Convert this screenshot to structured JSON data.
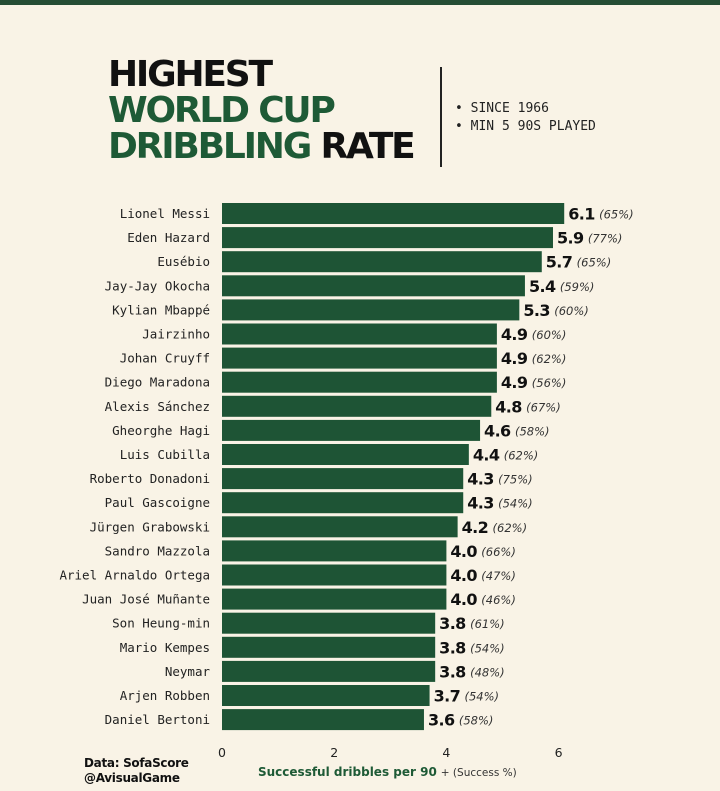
{
  "title": {
    "line1": "HIGHEST",
    "line2": "WORLD CUP",
    "line3_green": "DRIBBLING",
    "line3_dark": "RATE"
  },
  "notes": [
    "• SINCE 1966",
    "• MIN 5 90S PLAYED"
  ],
  "source": {
    "line1": "Data: SofaScore",
    "line2": "@AvisualGame"
  },
  "colors": {
    "bar": "#1e5435",
    "accent": "#1e5a36",
    "background": "#f9f3e6"
  },
  "chart_data": {
    "type": "bar",
    "orientation": "horizontal",
    "xlabel": "Successful dribbles per 90",
    "xlabel_note": "+ (Success %)",
    "xlim": [
      0,
      6.2
    ],
    "xticks": [
      0,
      2,
      4,
      6
    ],
    "grid": false,
    "categories": [
      "Lionel Messi",
      "Eden Hazard",
      "Eusébio",
      "Jay-Jay Okocha",
      "Kylian Mbappé",
      "Jairzinho",
      "Johan Cruyff",
      "Diego Maradona",
      "Alexis Sánchez",
      "Gheorghe Hagi",
      "Luis Cubilla",
      "Roberto Donadoni",
      "Paul Gascoigne",
      "Jürgen Grabowski",
      "Sandro Mazzola",
      "Ariel Arnaldo Ortega",
      "Juan José Muñante",
      "Son Heung-min",
      "Mario Kempes",
      "Neymar",
      "Arjen Robben",
      "Daniel Bertoni"
    ],
    "values": [
      6.1,
      5.9,
      5.7,
      5.4,
      5.3,
      4.9,
      4.9,
      4.9,
      4.8,
      4.6,
      4.4,
      4.3,
      4.3,
      4.2,
      4.0,
      4.0,
      4.0,
      3.8,
      3.8,
      3.8,
      3.7,
      3.6
    ],
    "value_labels": [
      "6.1",
      "5.9",
      "5.7",
      "5.4",
      "5.3",
      "4.9",
      "4.9",
      "4.9",
      "4.8",
      "4.6",
      "4.4",
      "4.3",
      "4.3",
      "4.2",
      "4.0",
      "4.0",
      "4.0",
      "3.8",
      "3.8",
      "3.8",
      "3.7",
      "3.6"
    ],
    "success_pct": [
      "(65%)",
      "(77%)",
      "(65%)",
      "(59%)",
      "(60%)",
      "(60%)",
      "(62%)",
      "(56%)",
      "(67%)",
      "(58%)",
      "(62%)",
      "(75%)",
      "(54%)",
      "(62%)",
      "(66%)",
      "(47%)",
      "(46%)",
      "(61%)",
      "(54%)",
      "(48%)",
      "(54%)",
      "(58%)"
    ]
  }
}
